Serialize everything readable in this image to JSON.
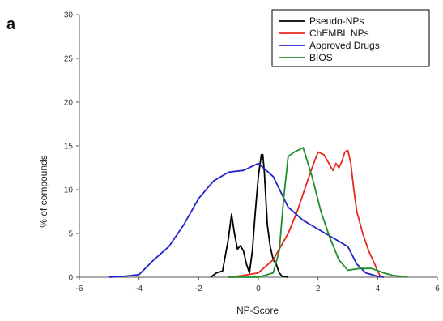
{
  "panel_label": "a",
  "chart_data": {
    "type": "line",
    "title": "",
    "xlabel": "NP-Score",
    "ylabel": "% of compounds",
    "xlim": [
      -6,
      6
    ],
    "ylim": [
      0,
      30
    ],
    "xticks": [
      -6,
      -4,
      -2,
      0,
      2,
      4,
      6
    ],
    "yticks": [
      0,
      5,
      10,
      15,
      20,
      25,
      30
    ],
    "grid": false,
    "legend_position": "top-right",
    "series": [
      {
        "name": "Pseudo-NPs",
        "color": "#000000",
        "x": [
          -1.6,
          -1.4,
          -1.2,
          -1.0,
          -0.9,
          -0.8,
          -0.7,
          -0.6,
          -0.5,
          -0.4,
          -0.3,
          -0.2,
          -0.1,
          0.0,
          0.1,
          0.15,
          0.2,
          0.3,
          0.4,
          0.5,
          0.6,
          0.7,
          0.8,
          1.0
        ],
        "y": [
          0,
          0.5,
          0.7,
          4.5,
          7.2,
          5.0,
          3.2,
          3.6,
          3.0,
          1.5,
          0.5,
          3.0,
          7.5,
          11.5,
          14.0,
          14.0,
          12.0,
          6.0,
          3.5,
          2.0,
          1.5,
          0.5,
          0.1,
          0
        ]
      },
      {
        "name": "ChEMBL NPs",
        "color": "#e8281e",
        "x": [
          -1.0,
          -0.5,
          0.0,
          0.5,
          1.0,
          1.3,
          1.6,
          1.8,
          2.0,
          2.2,
          2.4,
          2.5,
          2.6,
          2.7,
          2.8,
          2.9,
          3.0,
          3.1,
          3.2,
          3.3,
          3.5,
          3.7,
          3.9,
          4.0,
          4.1
        ],
        "y": [
          0,
          0.2,
          0.5,
          2.0,
          5.0,
          7.5,
          10.5,
          12.5,
          14.3,
          14.0,
          12.8,
          12.2,
          13.0,
          12.5,
          13.2,
          14.3,
          14.5,
          13.0,
          10.0,
          7.5,
          5.0,
          3.0,
          1.5,
          0.7,
          0
        ]
      },
      {
        "name": "Approved Drugs",
        "color": "#2323cc",
        "x": [
          -5.0,
          -4.5,
          -4.0,
          -3.5,
          -3.0,
          -2.5,
          -2.0,
          -1.5,
          -1.0,
          -0.5,
          0.0,
          0.5,
          1.0,
          1.5,
          2.0,
          2.5,
          3.0,
          3.3,
          3.6,
          4.0,
          4.2
        ],
        "y": [
          0,
          0.1,
          0.3,
          2.0,
          3.5,
          6.0,
          9.0,
          11.0,
          12.0,
          12.2,
          13.0,
          11.5,
          8.0,
          6.5,
          5.5,
          4.5,
          3.5,
          1.5,
          0.5,
          0.1,
          0
        ]
      },
      {
        "name": "BIOS",
        "color": "#1f8f2a",
        "x": [
          -1.0,
          0.0,
          0.5,
          0.7,
          0.85,
          1.0,
          1.2,
          1.5,
          1.8,
          2.1,
          2.4,
          2.7,
          3.0,
          3.4,
          3.8,
          4.2,
          4.5,
          5.0
        ],
        "y": [
          0,
          0,
          0.5,
          3.0,
          9.0,
          13.8,
          14.3,
          14.8,
          11.5,
          7.5,
          4.5,
          2.0,
          0.8,
          1.0,
          1.0,
          0.5,
          0.2,
          0
        ]
      }
    ]
  }
}
